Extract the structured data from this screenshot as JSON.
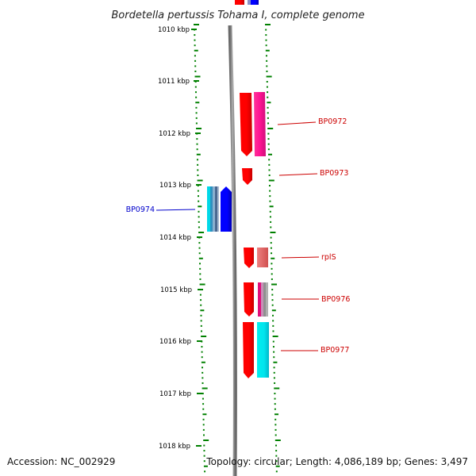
{
  "title": "Bordetella pertussis Tohama I, complete genome",
  "scale_labels": [
    "1010 kbp",
    "1011 kbp",
    "1012 kbp",
    "1013 kbp",
    "1014 kbp",
    "1015 kbp",
    "1016 kbp",
    "1017 kbp",
    "1018 kbp"
  ],
  "genes": [
    {
      "name": "BP0972",
      "color": "#cc0000"
    },
    {
      "name": "BP0973",
      "color": "#cc0000"
    },
    {
      "name": "BP0974",
      "color": "#0000cc"
    },
    {
      "name": "rplS",
      "color": "#cc0000"
    },
    {
      "name": "BP0976",
      "color": "#cc0000"
    },
    {
      "name": "BP0977",
      "color": "#cc0000"
    }
  ],
  "colors": {
    "backbone": "#8c8c8c",
    "ticks": "#008000",
    "cds_forward": "#ff0000",
    "cds_reverse": "#0000ff",
    "pink": "#ff1493",
    "cyan": "#00e5ee",
    "salmon": "#e87878"
  },
  "footer": {
    "accession": "Accession: NC_002929",
    "summary": "Topology: circular; Length: 4,086,189 bp; Genes: 3,497"
  }
}
